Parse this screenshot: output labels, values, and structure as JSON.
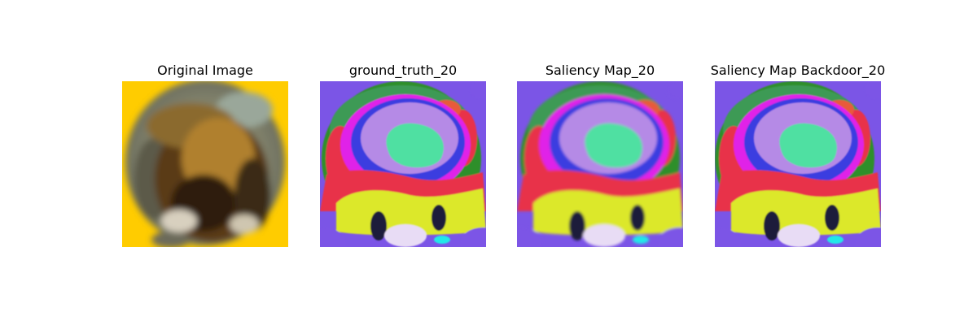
{
  "figure": {
    "panels": [
      {
        "title": "Original Image",
        "kind": "original"
      },
      {
        "title": "ground_truth_20",
        "kind": "saliency",
        "variant": 0
      },
      {
        "title": "Saliency Map_20",
        "kind": "saliency",
        "variant": 1
      },
      {
        "title": "Saliency Map Backdoor_20",
        "kind": "saliency",
        "variant": 2
      }
    ],
    "colors": {
      "original_background": "#ffcc00",
      "original_ring": "#7b7a66",
      "original_subject": "#5a3a12",
      "saliency_background": "#7b55e6",
      "saliency_outer": "#2f8f2a",
      "saliency_red": "#e8324a",
      "saliency_magenta": "#e020e8",
      "saliency_blue": "#3a3de0",
      "saliency_lavender": "#b58ae6",
      "saliency_mint": "#4fe0a2",
      "saliency_yellow": "#dce82a",
      "saliency_dark": "#1e1a3a",
      "saliency_white": "#e8dcf5",
      "saliency_cyan": "#20e8e8"
    }
  }
}
